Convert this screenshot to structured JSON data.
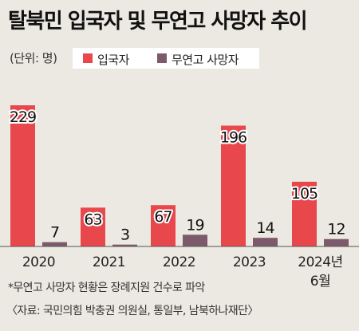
{
  "title": "탈북민 입국자 및 무연고 사망자 추이",
  "unit_label": "(단위: 명)",
  "footnote": "*무연고 사망자 현황은 장례지원 건수로 파악",
  "source": "〈자료: 국민의힘 박충권 의원실, 통일부, 남북하나재단〉",
  "colors": {
    "entrants": "#e8474c",
    "deaths": "#7d5a6b",
    "background": "#ece9e2"
  },
  "chart_data": {
    "type": "bar",
    "title": "탈북민 입국자 및 무연고 사망자 추이",
    "categories": [
      "2020",
      "2021",
      "2022",
      "2023",
      "2024년\n6월"
    ],
    "series": [
      {
        "name": "입국자",
        "values": [
          229,
          63,
          67,
          196,
          105
        ]
      },
      {
        "name": "무연고 사망자",
        "values": [
          7,
          3,
          19,
          14,
          12
        ]
      }
    ],
    "xlabel": "",
    "ylabel": "",
    "ylim": [
      0,
      229
    ],
    "grid": false,
    "legend": "top"
  }
}
